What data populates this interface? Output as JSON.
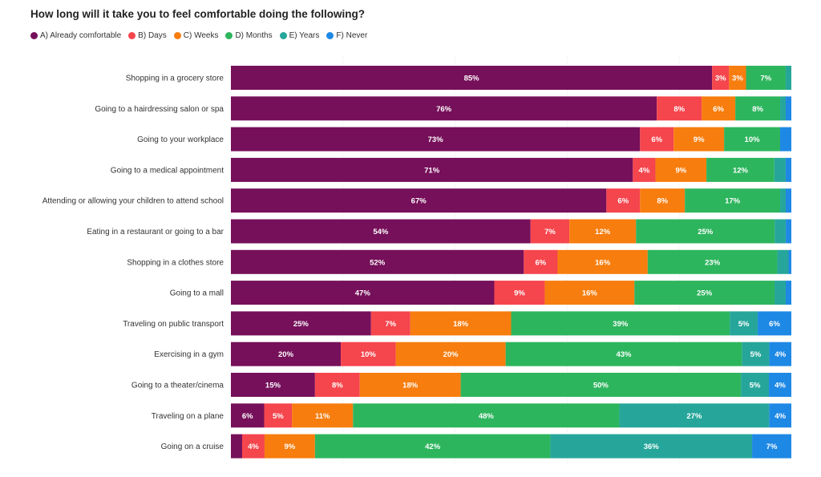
{
  "chart_data": {
    "type": "bar",
    "orientation": "horizontal",
    "stacked": true,
    "title": "How long will it take you to feel comfortable doing the following?",
    "legend_position": "top-left",
    "grid": true,
    "xlim": [
      0,
      100
    ],
    "categories": [
      "Shopping in a grocery store",
      "Going to a hairdressing salon or spa",
      "Going to your workplace",
      "Going to a medical appointment",
      "Attending or allowing your children to attend school",
      "Eating in a restaurant or going to a bar",
      "Shopping in a clothes store",
      "Going to a mall",
      "Traveling on public transport",
      "Exercising in a gym",
      "Going to a theater/cinema",
      "Traveling on a plane",
      "Going on a cruise"
    ],
    "series": [
      {
        "name": "A) Already comfortable",
        "color": "#76105a",
        "values": [
          85,
          76,
          73,
          71,
          67,
          54,
          52,
          47,
          25,
          20,
          15,
          6,
          2
        ]
      },
      {
        "name": "B) Days",
        "color": "#f5454d",
        "values": [
          3,
          8,
          6,
          4,
          6,
          7,
          6,
          9,
          7,
          10,
          8,
          5,
          4
        ]
      },
      {
        "name": "C) Weeks",
        "color": "#f77d0e",
        "values": [
          3,
          6,
          9,
          9,
          8,
          12,
          16,
          16,
          18,
          20,
          18,
          11,
          9
        ]
      },
      {
        "name": "D) Months",
        "color": "#2db55d",
        "values": [
          7,
          8,
          10,
          12,
          17,
          25,
          23,
          25,
          39,
          43,
          50,
          48,
          42
        ]
      },
      {
        "name": "E) Years",
        "color": "#26a69a",
        "values": [
          1,
          1,
          0,
          2,
          1,
          2,
          2,
          2,
          5,
          5,
          5,
          27,
          36
        ]
      },
      {
        "name": "F) Never",
        "color": "#1e88e5",
        "values": [
          0,
          1,
          2,
          1,
          1,
          1,
          0.5,
          1,
          6,
          4,
          4,
          4,
          7
        ]
      }
    ],
    "label_threshold": 3
  }
}
